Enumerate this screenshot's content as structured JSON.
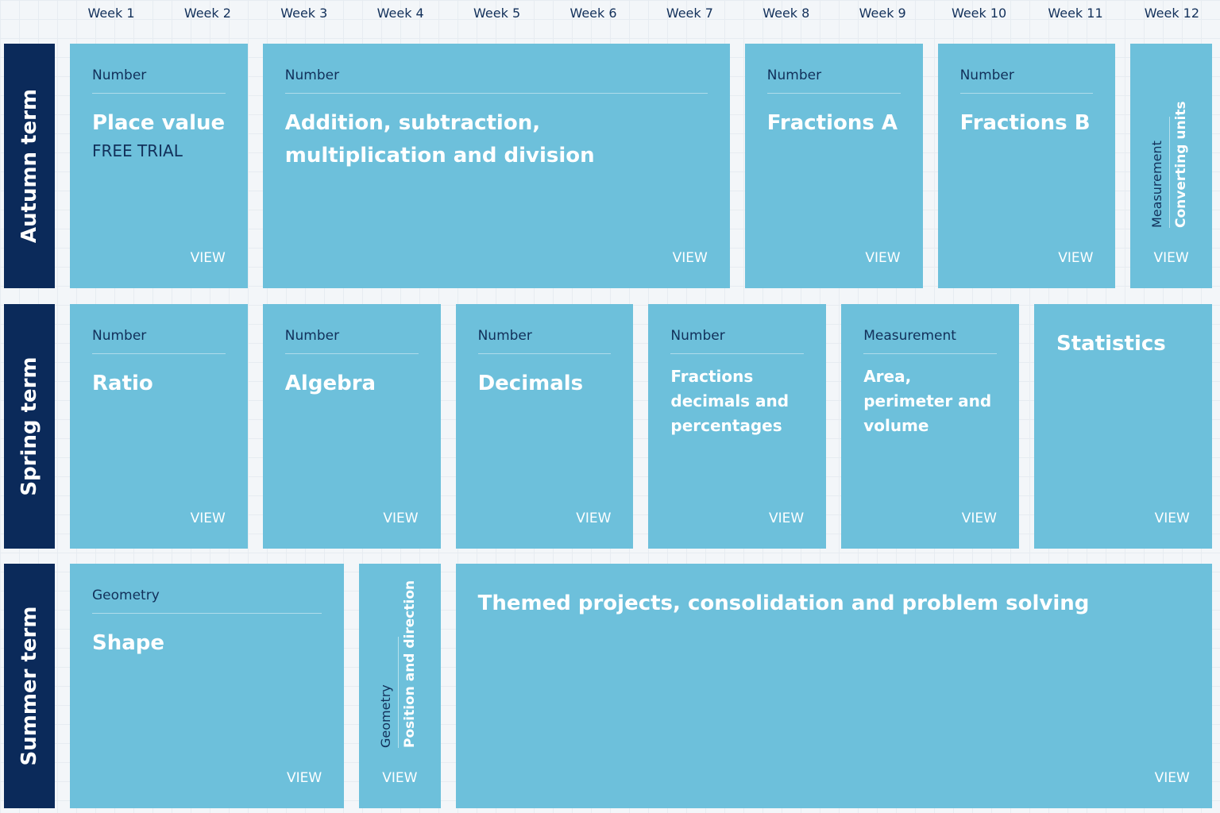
{
  "weeks": [
    "Week 1",
    "Week 2",
    "Week 3",
    "Week 4",
    "Week 5",
    "Week 6",
    "Week 7",
    "Week 8",
    "Week 9",
    "Week 10",
    "Week 11",
    "Week 12"
  ],
  "terms": [
    {
      "name": "Autumn term",
      "units": [
        {
          "category": "Number",
          "title": "Place value",
          "badge": "FREE TRIAL",
          "link": "VIEW"
        },
        {
          "category": "Number",
          "title": "Addition, subtraction, multiplication and division",
          "link": "VIEW"
        },
        {
          "category": "Number",
          "title": "Fractions A",
          "link": "VIEW"
        },
        {
          "category": "Number",
          "title": "Fractions B",
          "link": "VIEW"
        },
        {
          "category": "Measurement",
          "title": "Converting units",
          "link": "VIEW"
        }
      ]
    },
    {
      "name": "Spring term",
      "units": [
        {
          "category": "Number",
          "title": "Ratio",
          "link": "VIEW"
        },
        {
          "category": "Number",
          "title": "Algebra",
          "link": "VIEW"
        },
        {
          "category": "Number",
          "title": "Decimals",
          "link": "VIEW"
        },
        {
          "category": "Number",
          "title": "Fractions decimals and percentages",
          "link": "VIEW"
        },
        {
          "category": "Measurement",
          "title": "Area, perimeter and volume",
          "link": "VIEW"
        },
        {
          "title": "Statistics",
          "link": "VIEW"
        }
      ]
    },
    {
      "name": "Summer term",
      "units": [
        {
          "category": "Geometry",
          "title": "Shape",
          "link": "VIEW"
        },
        {
          "category": "Geometry",
          "title": "Position and direction",
          "link": "VIEW"
        },
        {
          "title": "Themed projects, consolidation and problem solving",
          "link": "VIEW"
        }
      ]
    }
  ]
}
